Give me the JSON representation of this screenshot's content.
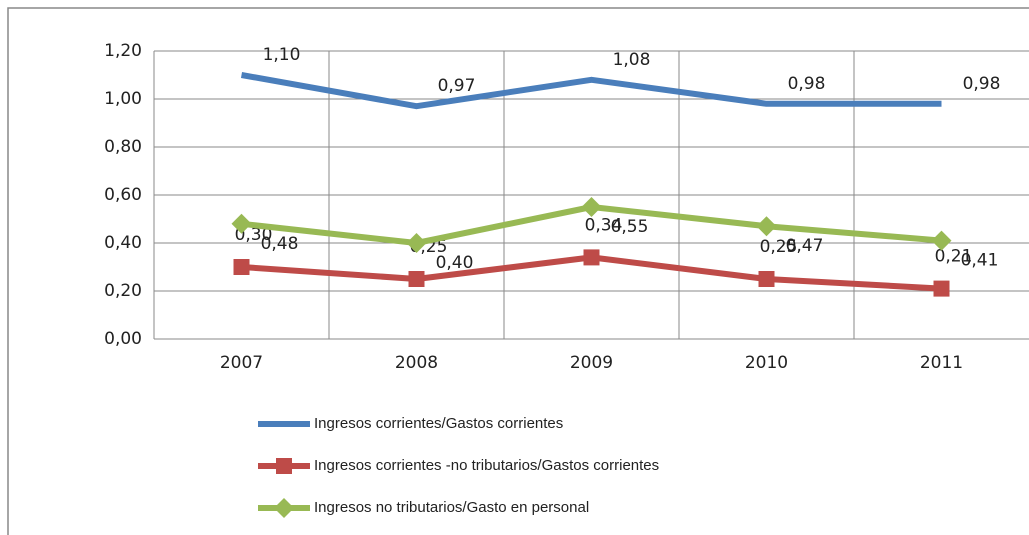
{
  "chart_data": {
    "type": "line",
    "categories": [
      "2007",
      "2008",
      "2009",
      "2010",
      "2011"
    ],
    "series": [
      {
        "name": "Ingresos corrientes/Gastos corrientes",
        "color": "#4a7ebb",
        "marker": "none",
        "values": [
          1.1,
          0.97,
          1.08,
          0.98,
          0.98
        ],
        "value_labels": [
          "1,10",
          "0,97",
          "1,08",
          "0,98",
          "0,98"
        ]
      },
      {
        "name": "Ingresos corrientes -no tributarios/Gastos corrientes",
        "color": "#be4b48",
        "marker": "square",
        "values": [
          0.3,
          0.25,
          0.34,
          0.25,
          0.21
        ],
        "value_labels": [
          "0,30",
          "0,25",
          "0,34",
          "0,25",
          "0,21"
        ]
      },
      {
        "name": "Ingresos no tributarios/Gasto en personal",
        "color": "#98b954",
        "marker": "diamond",
        "values": [
          0.48,
          0.4,
          0.55,
          0.47,
          0.41
        ],
        "value_labels": [
          "0,48",
          "0,40",
          "0,55",
          "0,47",
          "0,41"
        ]
      }
    ],
    "ylim": [
      0,
      1.2
    ],
    "yticks": [
      {
        "value": 0,
        "label": "0,00"
      },
      {
        "value": 0.2,
        "label": "0,20"
      },
      {
        "value": 0.4,
        "label": "0,40"
      },
      {
        "value": 0.6,
        "label": "0,60"
      },
      {
        "value": 0.8,
        "label": "0,80"
      },
      {
        "value": 1.0,
        "label": "1,00"
      },
      {
        "value": 1.2,
        "label": "1,20"
      }
    ],
    "grid": true,
    "legend": "bottom"
  }
}
